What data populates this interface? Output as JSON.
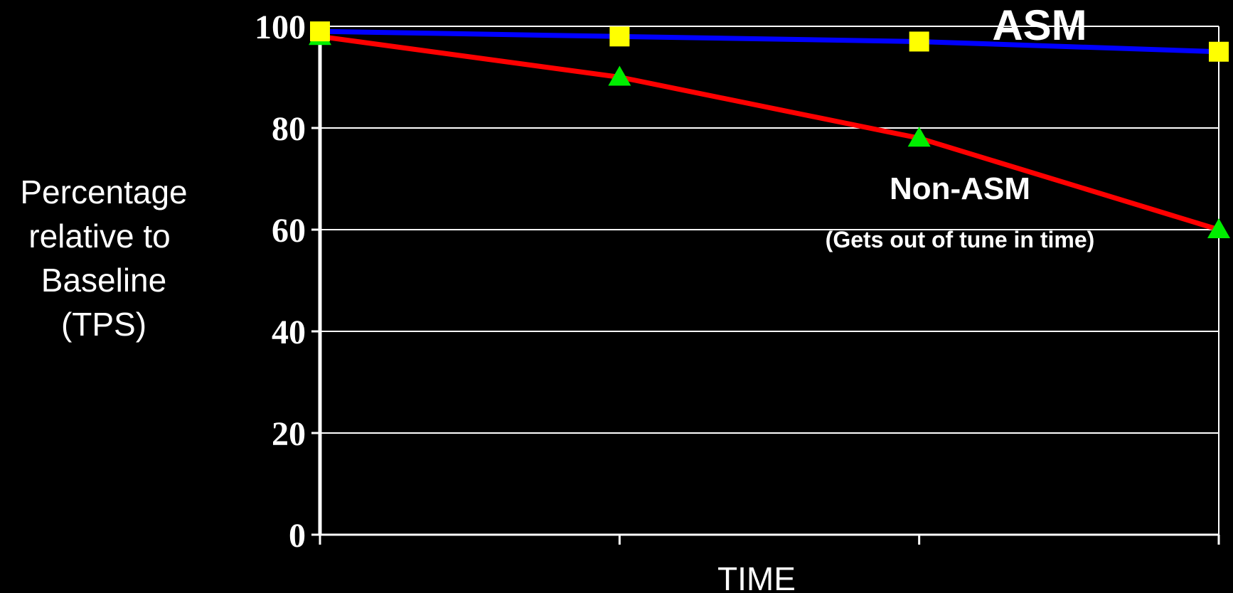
{
  "chart_data": {
    "type": "line",
    "title": "",
    "xlabel": "TIME",
    "ylabel_lines": [
      "Percentage",
      "relative to",
      "Baseline",
      "(TPS)"
    ],
    "x": [
      1,
      2,
      3,
      4
    ],
    "xticks_labeled": false,
    "yticks": [
      0,
      20,
      40,
      60,
      80,
      100
    ],
    "ylim": [
      0,
      100
    ],
    "grid": true,
    "series": [
      {
        "name": "ASM",
        "values": [
          99,
          98,
          97,
          95
        ],
        "color": "#0000ff",
        "marker": "square",
        "marker_color": "#ffff00"
      },
      {
        "name": "Non-ASM",
        "values": [
          98,
          90,
          78,
          60
        ],
        "color": "#ff0000",
        "marker": "triangle",
        "marker_color": "#00ee00"
      }
    ],
    "annotations": [
      {
        "text": "(Gets out of tune in time)",
        "series": "Non-ASM"
      }
    ],
    "colors": {
      "background": "#000000",
      "axis": "#ffffff",
      "grid": "#ffffff"
    }
  }
}
